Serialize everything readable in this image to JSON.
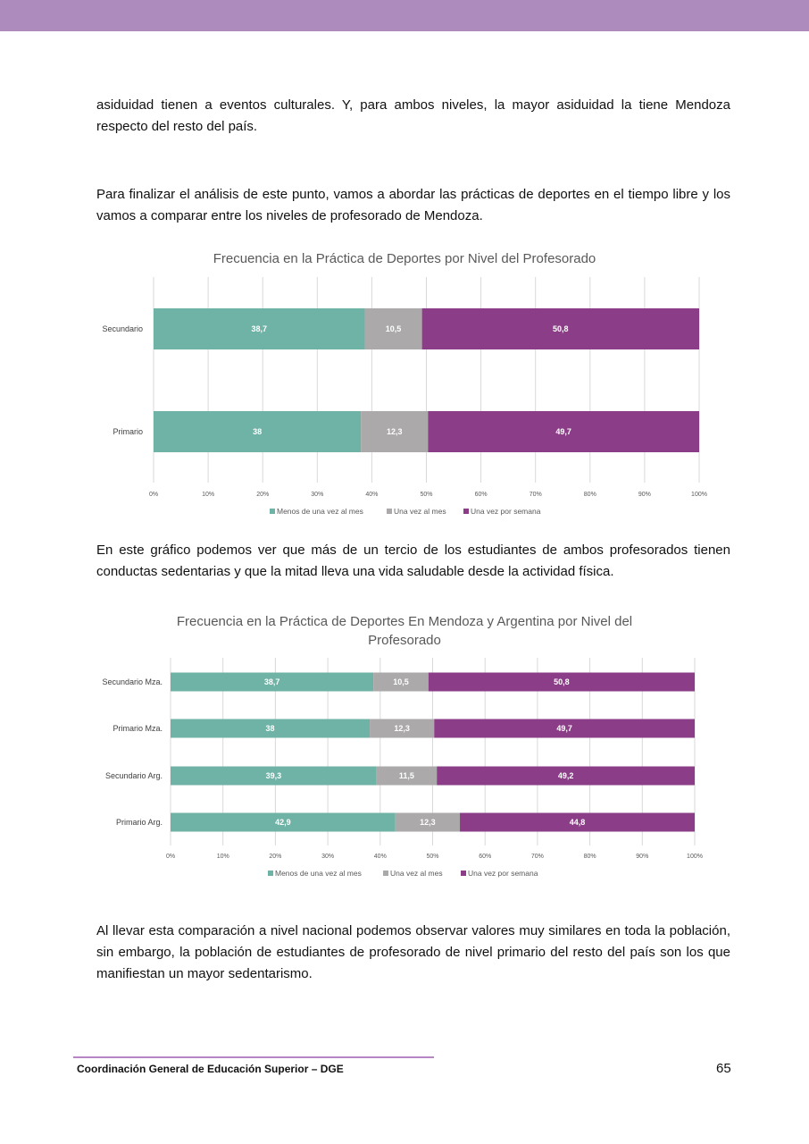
{
  "header": {
    "color": "#ae8bbd"
  },
  "paragraphs": [
    {
      "lines": [
        "asiduidad tienen a eventos culturales. Y, para ambos niveles, la mayor asiduidad la tiene Mendoza",
        "respecto del resto del país."
      ]
    },
    {
      "lines": [
        "Para finalizar el análisis de este punto, vamos a abordar las prácticas de deportes en el tiempo libre y los",
        "vamos a comparar entre los niveles de profesorado de Mendoza."
      ]
    },
    {
      "lines": [
        "En este gráfico podemos ver que más de un tercio de los estudiantes de ambos profesorados tienen",
        "conductas sedentarias y que la mitad lleva una vida saludable desde la actividad física."
      ]
    },
    {
      "lines": [
        "Al llevar esta comparación a nivel nacional podemos observar valores muy similares en toda la población,",
        "sin embargo, la población de estudiantes de profesorado de nivel primario del resto del país son los que",
        "manifiestan un mayor sedentarismo."
      ]
    }
  ],
  "chart_data": [
    {
      "type": "bar",
      "orientation": "horizontal",
      "stacked": "100%",
      "title": [
        "Frecuencia en la Práctica de Deportes por Nivel del Profesorado"
      ],
      "categories": [
        "Secundario",
        "Primario"
      ],
      "series": [
        {
          "name": "Menos de una vez al mes",
          "color": "#6fb3a6",
          "values": [
            38.7,
            38
          ],
          "labels": [
            "38,7",
            "38"
          ]
        },
        {
          "name": "Una vez al mes",
          "color": "#aba9a9",
          "values": [
            10.5,
            12.3
          ],
          "labels": [
            "10,5",
            "12,3"
          ]
        },
        {
          "name": "Una vez por semana",
          "color": "#8b3e87",
          "values": [
            50.8,
            49.7
          ],
          "labels": [
            "50,8",
            "49,7"
          ]
        }
      ],
      "xlim": [
        0,
        100
      ],
      "xticks": [
        "0%",
        "10%",
        "20%",
        "30%",
        "40%",
        "50%",
        "60%",
        "70%",
        "80%",
        "90%",
        "100%"
      ],
      "grid": "vertical",
      "legend": "bottom"
    },
    {
      "type": "bar",
      "orientation": "horizontal",
      "stacked": "100%",
      "title": [
        "Frecuencia en la Práctica de Deportes En Mendoza y Argentina por Nivel del",
        "Profesorado"
      ],
      "categories": [
        "Secundario Mza.",
        "Primario Mza.",
        "Secundario Arg.",
        "Primario Arg."
      ],
      "series": [
        {
          "name": "Menos de una vez al mes",
          "color": "#6fb3a6",
          "values": [
            38.7,
            38,
            39.3,
            42.9
          ],
          "labels": [
            "38,7",
            "38",
            "39,3",
            "42,9"
          ]
        },
        {
          "name": "Una vez al mes",
          "color": "#aba9a9",
          "values": [
            10.5,
            12.3,
            11.5,
            12.3
          ],
          "labels": [
            "10,5",
            "12,3",
            "11,5",
            "12,3"
          ]
        },
        {
          "name": "Una vez por semana",
          "color": "#8b3e87",
          "values": [
            50.8,
            49.7,
            49.2,
            44.8
          ],
          "labels": [
            "50,8",
            "49,7",
            "49,2",
            "44,8"
          ]
        }
      ],
      "xlim": [
        0,
        100
      ],
      "xticks": [
        "0%",
        "10%",
        "20%",
        "30%",
        "40%",
        "50%",
        "60%",
        "70%",
        "80%",
        "90%",
        "100%"
      ],
      "grid": "vertical",
      "legend": "bottom"
    }
  ],
  "footer": {
    "text": "Coordinación General de Educación Superior – DGE",
    "page": "65"
  }
}
